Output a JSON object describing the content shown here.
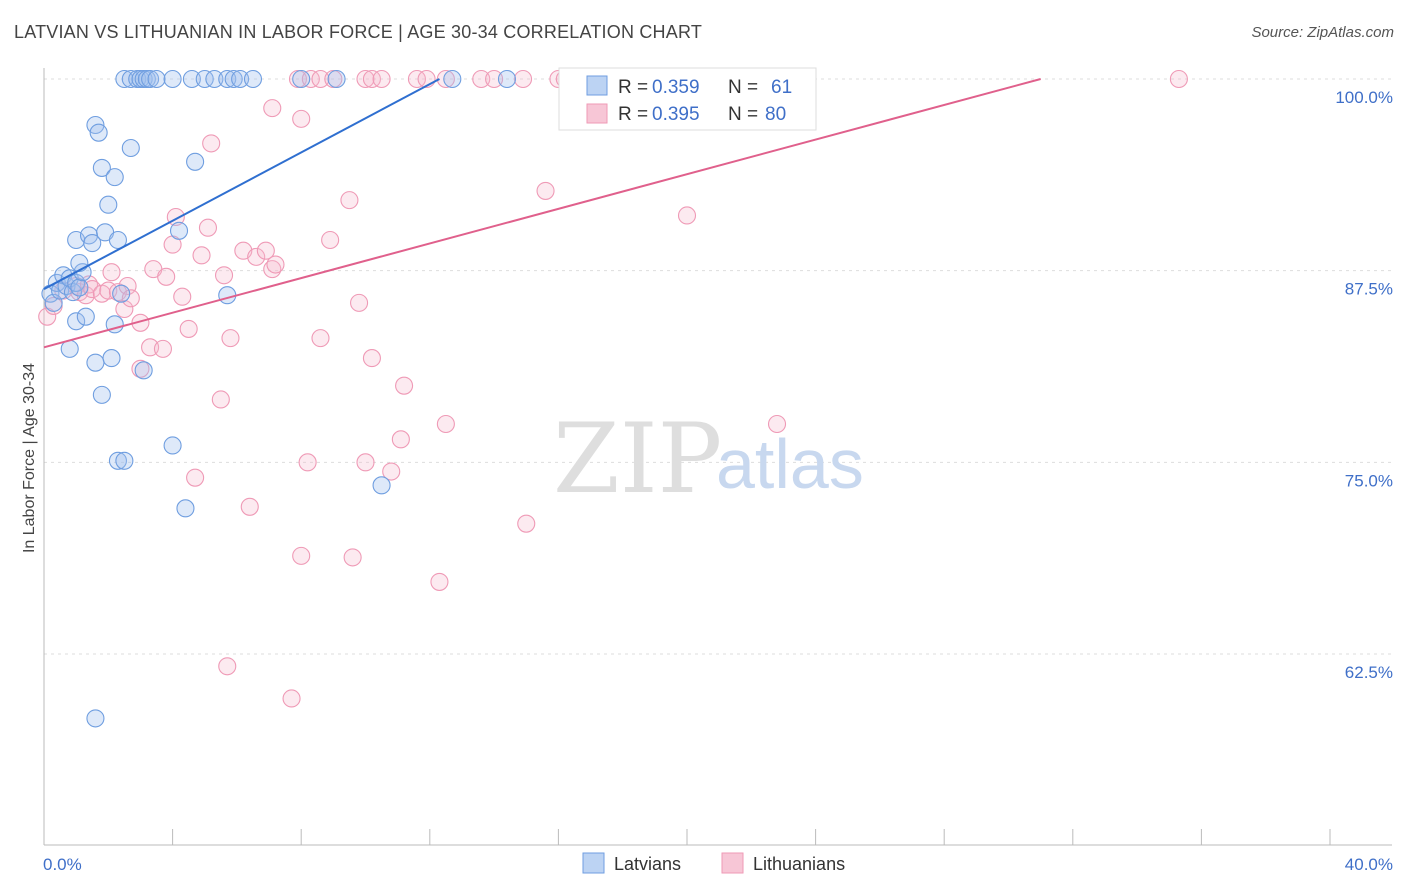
{
  "title": "LATVIAN VS LITHUANIAN IN LABOR FORCE | AGE 30-34 CORRELATION CHART",
  "source": "Source: ZipAtlas.com",
  "watermark": {
    "zip": "ZIP",
    "atlas": "atlas"
  },
  "legend": {
    "r_label": "R =",
    "n_label": "N =",
    "series": [
      {
        "r": "0.359",
        "n": "61"
      },
      {
        "r": "0.395",
        "n": "80"
      }
    ]
  },
  "colors": {
    "latvian": "#6f9ee0",
    "lithuanian": "#ef9ab6",
    "latvian_line": "#2f6fd0",
    "lithuanian_line": "#e0608c"
  },
  "chart_data": {
    "type": "scatter",
    "title": "LATVIAN VS LITHUANIAN IN LABOR FORCE | AGE 30-34 CORRELATION CHART",
    "xlabel": "",
    "ylabel": "In Labor Force | Age 30-34",
    "xlim": [
      0,
      40
    ],
    "ylim": [
      50,
      100
    ],
    "x_tick_labels": [
      "0.0%",
      "40.0%"
    ],
    "y_ticks": [
      {
        "value": 100,
        "label": "100.0%"
      },
      {
        "value": 87.5,
        "label": "87.5%"
      },
      {
        "value": 75,
        "label": "75.0%"
      },
      {
        "value": 62.5,
        "label": "62.5%"
      }
    ],
    "grid": true,
    "legend_position": "bottom",
    "series": [
      {
        "name": "Latvians",
        "r": 0.359,
        "n": 61,
        "trend": {
          "x": [
            0,
            12.3
          ],
          "y": [
            86.3,
            100
          ]
        },
        "points": [
          [
            0.2,
            86.0
          ],
          [
            0.3,
            85.4
          ],
          [
            0.4,
            86.7
          ],
          [
            0.5,
            86.2
          ],
          [
            0.6,
            87.2
          ],
          [
            0.7,
            86.5
          ],
          [
            0.8,
            87.0
          ],
          [
            0.9,
            86.1
          ],
          [
            1.0,
            86.7
          ],
          [
            1.1,
            86.4
          ],
          [
            1.2,
            87.4
          ],
          [
            1.0,
            84.2
          ],
          [
            1.1,
            88.0
          ],
          [
            1.3,
            84.5
          ],
          [
            0.8,
            82.4
          ],
          [
            1.6,
            97.0
          ],
          [
            1.7,
            96.5
          ],
          [
            1.8,
            94.2
          ],
          [
            2.2,
            93.6
          ],
          [
            2.7,
            95.5
          ],
          [
            2.0,
            91.8
          ],
          [
            1.0,
            89.5
          ],
          [
            1.4,
            89.8
          ],
          [
            1.5,
            89.3
          ],
          [
            1.9,
            90.0
          ],
          [
            2.3,
            89.5
          ],
          [
            2.4,
            86.0
          ],
          [
            2.2,
            84.0
          ],
          [
            2.1,
            81.8
          ],
          [
            1.6,
            81.5
          ],
          [
            1.8,
            79.4
          ],
          [
            3.1,
            81.0
          ],
          [
            2.3,
            75.1
          ],
          [
            2.5,
            75.1
          ],
          [
            4.0,
            76.1
          ],
          [
            4.4,
            72.0
          ],
          [
            4.2,
            90.1
          ],
          [
            4.7,
            94.6
          ],
          [
            5.7,
            85.9
          ],
          [
            1.6,
            58.3
          ],
          [
            2.5,
            100
          ],
          [
            2.7,
            100
          ],
          [
            2.9,
            100
          ],
          [
            3.0,
            100
          ],
          [
            3.1,
            100
          ],
          [
            3.2,
            100
          ],
          [
            3.3,
            100
          ],
          [
            3.5,
            100
          ],
          [
            4.0,
            100
          ],
          [
            4.6,
            100
          ],
          [
            5.0,
            100
          ],
          [
            5.3,
            100
          ],
          [
            5.7,
            100
          ],
          [
            5.9,
            100
          ],
          [
            6.1,
            100
          ],
          [
            6.5,
            100
          ],
          [
            8.0,
            100
          ],
          [
            9.1,
            100
          ],
          [
            12.7,
            100
          ],
          [
            14.4,
            100
          ],
          [
            10.5,
            73.5
          ]
        ]
      },
      {
        "name": "Lithuanians",
        "r": 0.395,
        "n": 80,
        "trend": {
          "x": [
            0,
            31
          ],
          "y": [
            82.5,
            100
          ]
        },
        "points": [
          [
            0.1,
            84.5
          ],
          [
            0.3,
            85.2
          ],
          [
            0.6,
            86.2
          ],
          [
            1.0,
            86.5
          ],
          [
            1.1,
            86.1
          ],
          [
            1.3,
            85.9
          ],
          [
            1.4,
            86.6
          ],
          [
            1.5,
            86.3
          ],
          [
            1.8,
            86.0
          ],
          [
            2.0,
            86.2
          ],
          [
            2.1,
            87.4
          ],
          [
            2.3,
            86.1
          ],
          [
            2.5,
            85.0
          ],
          [
            2.6,
            86.5
          ],
          [
            2.7,
            85.7
          ],
          [
            3.0,
            84.1
          ],
          [
            3.3,
            82.5
          ],
          [
            3.7,
            82.4
          ],
          [
            3.0,
            81.1
          ],
          [
            3.4,
            87.6
          ],
          [
            3.8,
            87.1
          ],
          [
            4.0,
            89.2
          ],
          [
            4.1,
            91.0
          ],
          [
            4.3,
            85.8
          ],
          [
            4.5,
            83.7
          ],
          [
            4.9,
            88.5
          ],
          [
            5.1,
            90.3
          ],
          [
            5.2,
            95.8
          ],
          [
            5.6,
            87.2
          ],
          [
            5.8,
            83.1
          ],
          [
            6.2,
            88.8
          ],
          [
            6.6,
            88.4
          ],
          [
            6.9,
            88.8
          ],
          [
            7.1,
            87.6
          ],
          [
            7.2,
            87.9
          ],
          [
            7.1,
            98.1
          ],
          [
            8.0,
            97.4
          ],
          [
            8.6,
            83.1
          ],
          [
            9.5,
            92.1
          ],
          [
            8.9,
            89.5
          ],
          [
            9.8,
            85.4
          ],
          [
            10.2,
            81.8
          ],
          [
            11.2,
            80.0
          ],
          [
            11.1,
            76.5
          ],
          [
            12.5,
            77.5
          ],
          [
            15.6,
            92.7
          ],
          [
            20.0,
            91.1
          ],
          [
            22.8,
            77.5
          ],
          [
            5.5,
            79.1
          ],
          [
            4.7,
            74.0
          ],
          [
            6.4,
            72.1
          ],
          [
            8.2,
            75.0
          ],
          [
            10.0,
            75.0
          ],
          [
            10.8,
            74.4
          ],
          [
            15.0,
            71.0
          ],
          [
            8.0,
            68.9
          ],
          [
            9.6,
            68.8
          ],
          [
            12.3,
            67.2
          ],
          [
            5.7,
            61.7
          ],
          [
            7.7,
            59.6
          ],
          [
            7.9,
            100
          ],
          [
            8.3,
            100
          ],
          [
            8.6,
            100
          ],
          [
            9.0,
            100
          ],
          [
            10.0,
            100
          ],
          [
            10.2,
            100
          ],
          [
            10.5,
            100
          ],
          [
            11.6,
            100
          ],
          [
            11.9,
            100
          ],
          [
            12.5,
            100
          ],
          [
            13.6,
            100
          ],
          [
            14.0,
            100
          ],
          [
            14.9,
            100
          ],
          [
            16.0,
            100
          ],
          [
            16.2,
            100
          ],
          [
            17.1,
            100
          ],
          [
            18.0,
            100
          ],
          [
            21.1,
            100
          ],
          [
            23.1,
            100
          ],
          [
            35.3,
            100
          ]
        ]
      }
    ]
  }
}
